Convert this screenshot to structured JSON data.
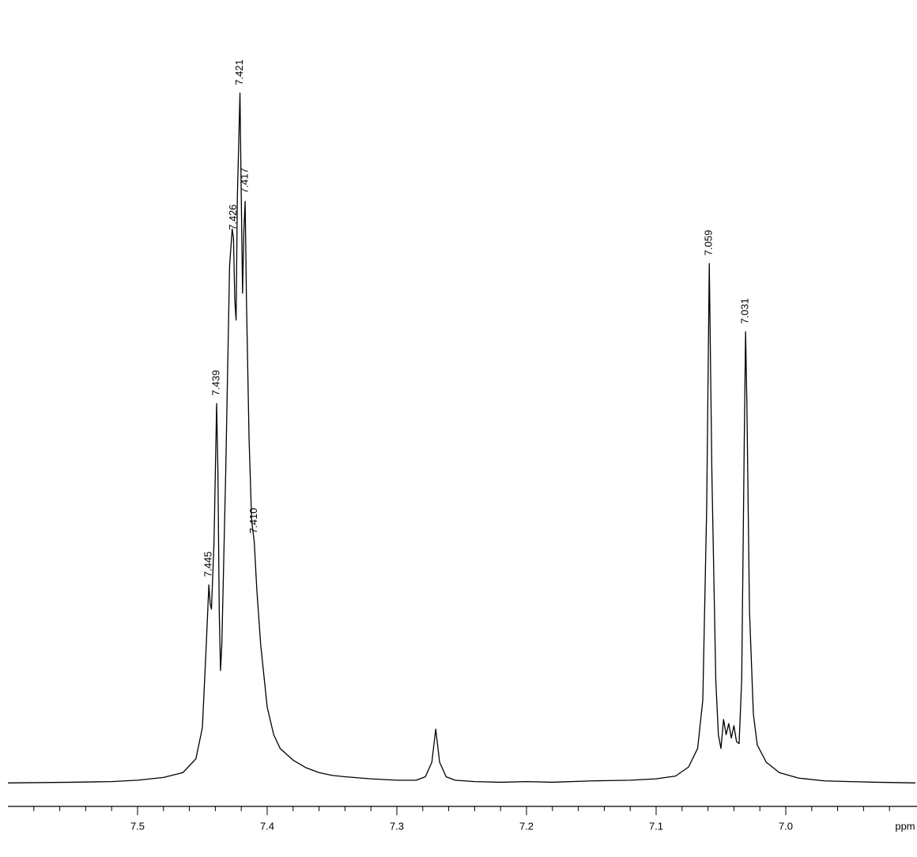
{
  "chart_data": {
    "type": "line",
    "x_label": "ppm",
    "x": [
      7.6,
      7.55,
      7.52,
      7.5,
      7.48,
      7.465,
      7.455,
      7.45,
      7.447,
      7.445,
      7.444,
      7.443,
      7.441,
      7.439,
      7.438,
      7.437,
      7.436,
      7.435,
      7.432,
      7.429,
      7.427,
      7.426,
      7.425,
      7.424,
      7.423,
      7.421,
      7.42,
      7.419,
      7.418,
      7.417,
      7.416,
      7.414,
      7.412,
      7.41,
      7.408,
      7.405,
      7.4,
      7.395,
      7.39,
      7.38,
      7.37,
      7.36,
      7.35,
      7.34,
      7.32,
      7.3,
      7.285,
      7.278,
      7.273,
      7.27,
      7.267,
      7.262,
      7.255,
      7.24,
      7.22,
      7.2,
      7.18,
      7.15,
      7.12,
      7.1,
      7.085,
      7.075,
      7.068,
      7.064,
      7.061,
      7.059,
      7.057,
      7.054,
      7.052,
      7.05,
      7.048,
      7.046,
      7.044,
      7.042,
      7.04,
      7.038,
      7.036,
      7.034,
      7.032,
      7.031,
      7.03,
      7.028,
      7.025,
      7.022,
      7.015,
      7.005,
      6.99,
      6.97,
      6.95,
      6.93,
      6.9
    ],
    "series": [
      {
        "color": "#000000",
        "values": [
          0,
          0.1,
          0.2,
          0.4,
          0.8,
          1.5,
          3.5,
          8,
          20,
          28.7,
          26,
          25.2,
          35,
          55,
          45,
          25,
          16.3,
          20,
          45,
          75,
          80.3,
          79,
          70,
          67.1,
          85,
          100,
          85,
          71,
          80,
          84.3,
          70,
          50,
          38,
          35,
          28,
          20,
          11,
          7,
          5,
          3.3,
          2.2,
          1.5,
          1.1,
          0.9,
          0.6,
          0.4,
          0.4,
          0.9,
          3,
          7.8,
          3,
          0.9,
          0.4,
          0.2,
          0.1,
          0.2,
          0.1,
          0.3,
          0.4,
          0.6,
          1,
          2.3,
          5,
          12,
          40,
          75.3,
          45,
          15,
          7,
          5,
          9.2,
          7,
          8.6,
          6.5,
          8.3,
          6,
          5.7,
          15,
          50,
          65.4,
          55,
          25,
          10,
          5.5,
          3,
          1.5,
          0.7,
          0.3,
          0.2,
          0.1,
          0
        ]
      }
    ],
    "peak_labels": [
      {
        "value": 7.445,
        "label": "7.445"
      },
      {
        "value": 7.439,
        "label": "7.439"
      },
      {
        "value": 7.426,
        "label": "7.426"
      },
      {
        "value": 7.421,
        "label": "7.421"
      },
      {
        "value": 7.417,
        "label": "7.417"
      },
      {
        "value": 7.41,
        "label": "7.410"
      },
      {
        "value": 7.059,
        "label": "7.059"
      },
      {
        "value": 7.031,
        "label": "7.031"
      }
    ],
    "xlim": [
      7.6,
      6.9
    ],
    "ylim": [
      -3.4,
      113.5
    ],
    "xticks": [
      7.5,
      7.4,
      7.3,
      7.2,
      7.1,
      {
        "value": 7,
        "label": "7.0"
      }
    ],
    "xminorticks": [
      7.58,
      7.56,
      7.54,
      7.52,
      7.48,
      7.46,
      7.44,
      7.42,
      7.38,
      7.36,
      7.34,
      7.32,
      7.28,
      7.26,
      7.24,
      7.22,
      7.18,
      7.16,
      7.14,
      7.12,
      7.08,
      7.06,
      7.04,
      7.02,
      6.98,
      6.96,
      6.94,
      6.92
    ]
  }
}
